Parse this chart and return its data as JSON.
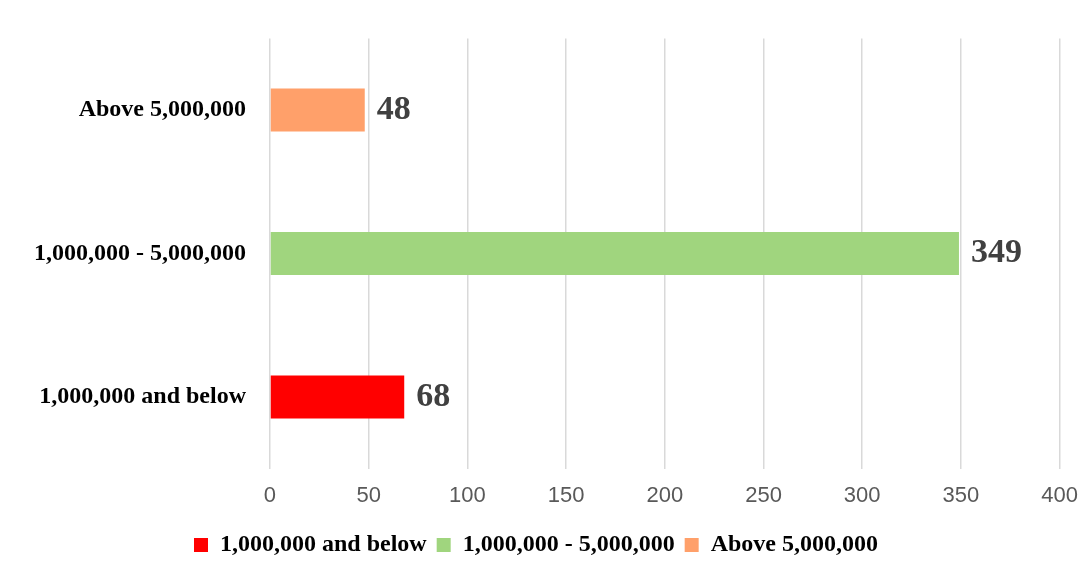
{
  "chart_data": {
    "type": "bar",
    "orientation": "horizontal",
    "categories": [
      "Above 5,000,000",
      "1,000,000 - 5,000,000",
      "1,000,000 and below"
    ],
    "series": [
      {
        "name": "1,000,000 and below",
        "color": "#ff0000",
        "values": [
          null,
          null,
          68
        ]
      },
      {
        "name": "1,000,000 - 5,000,000",
        "color": "#a0d57e",
        "values": [
          null,
          349,
          null
        ]
      },
      {
        "name": "Above 5,000,000",
        "color": "#ffa06a",
        "values": [
          48,
          null,
          null
        ]
      }
    ],
    "xlim": [
      0,
      400
    ],
    "xticks": [
      0,
      50,
      100,
      150,
      200,
      250,
      300,
      350,
      400
    ],
    "grid": "x",
    "legend": "bottom",
    "data_labels": true
  }
}
